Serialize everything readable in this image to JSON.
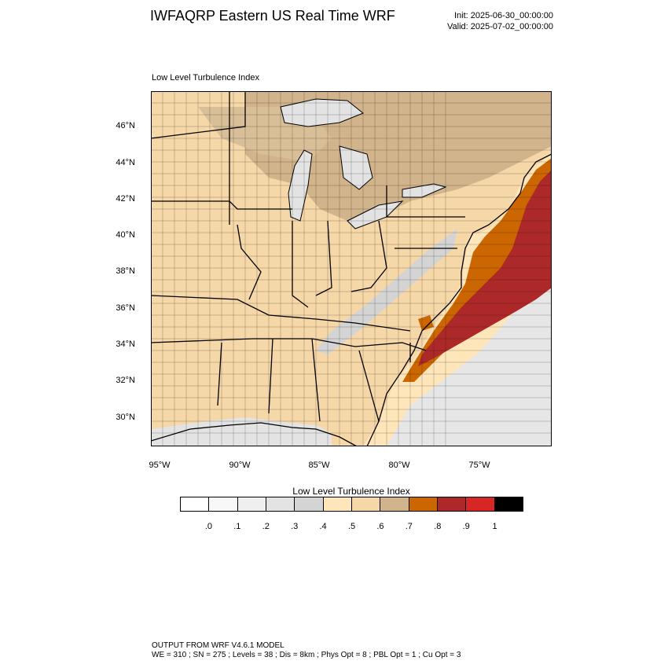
{
  "header": {
    "title": "IWFAQRP Eastern US Real Time WRF",
    "init": "Init: 2025-06-30_00:00:00",
    "valid": "Valid: 2025-07-02_00:00:00"
  },
  "map": {
    "subtitle": "Low Level Turbulence Index",
    "lat_labels": [
      "46°N",
      "44°N",
      "42°N",
      "40°N",
      "38°N",
      "36°N",
      "34°N",
      "32°N",
      "30°N"
    ],
    "lon_labels": [
      "95°W",
      "90°W",
      "85°W",
      "80°W",
      "75°W"
    ]
  },
  "colorbar": {
    "title": "Low Level Turbulence Index",
    "colors": [
      "#ffffff",
      "#f8f8f8",
      "#efefef",
      "#e3e3e3",
      "#d4d4d4",
      "#ffe6ba",
      "#f6d7a8",
      "#d2b48c",
      "#cc6600",
      "#ad2929",
      "#d62626",
      "#000000"
    ],
    "labels": [
      ".0",
      ".1",
      ".2",
      ".3",
      ".4",
      ".5",
      ".6",
      ".7",
      ".8",
      ".9",
      "1"
    ]
  },
  "footer": {
    "line1": "OUTPUT FROM WRF V4.6.1 MODEL",
    "line2": "WE = 310 ; SN = 275 ; Levels = 38 ; Dis = 8km ; Phys Opt = 8 ; PBL Opt = 1 ; Cu Opt = 3"
  }
}
